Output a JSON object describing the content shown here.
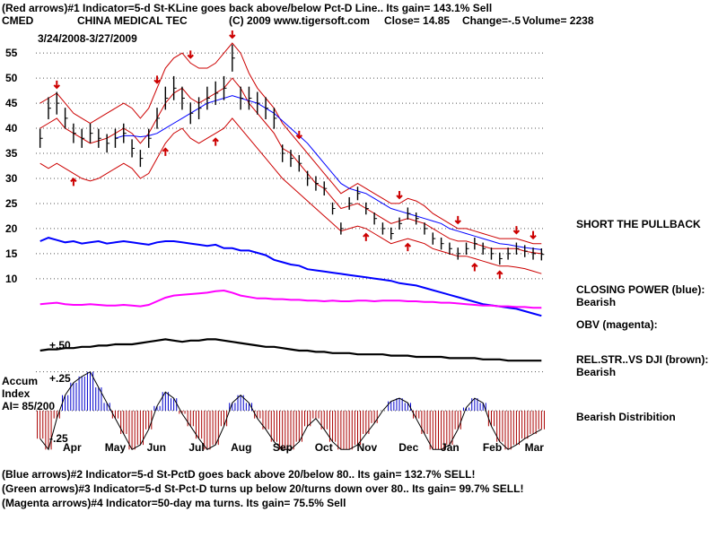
{
  "header": {
    "line1": "(Red arrows)#1 Indicator=5-d St-KLine goes back above/below Pct-D Line.. Its gain= 143.1% Sell",
    "ticker": "CMED",
    "company": "CHINA MEDICAL TEC",
    "copyright": "(C) 2009 www.tigersoft.com",
    "close": "Close=  14.85",
    "change": "Change=-.5",
    "volume": "Volume= 2238",
    "daterange": "3/24/2008-3/27/2009"
  },
  "side_labels": {
    "short_pullback": "SHORT THE PULLBACK",
    "closing_power": "CLOSING POWER (blue):",
    "closing_power_status": "Bearish",
    "obv": "OBV (magenta):",
    "relstr": "REL.STR..VS DJI (brown):",
    "relstr_status": "Bearish",
    "distribution": "Bearish Distribition"
  },
  "accum": {
    "title": "Accum",
    "index": "Index",
    "ai": "AI= 85/200",
    "plus": "+.25",
    "minus": "-.25",
    "relstr_tick": "+.50"
  },
  "footer": {
    "blue": "(Blue arrows)#2 Indicator=5-d St-PctD goes back above 20/below 80.. Its gain= 132.7% SELL!",
    "green": "(Green arrows)#3 Indicator=5-d St-Pct-D turns up below 20/turns down over 80.. Its gain= 99.7% SELL!",
    "magenta": "(Magenta arrows)#4 Indicator=50-day ma turns. Its gain= 75.5% Sell"
  },
  "colors": {
    "price": "#000000",
    "band": "#cc0000",
    "ma": "#0000ff",
    "closing_power": "#0000ff",
    "obv": "#ff00ff",
    "relstr": "#000000",
    "accum_pos": "#0000cc",
    "accum_neg": "#aa0000",
    "grid": "#555555"
  },
  "chart_data": {
    "type": "line",
    "title": "CHINA MEDICAL TEC",
    "ylim": [
      8,
      57
    ],
    "yticks": [
      10,
      15,
      20,
      25,
      30,
      35,
      40,
      45,
      50,
      55
    ],
    "months": [
      "Apr",
      "May",
      "Jun",
      "Jul",
      "Aug",
      "Sep",
      "Oct",
      "Nov",
      "Dec",
      "Jan",
      "Feb",
      "Mar"
    ],
    "series": [
      {
        "name": "Close",
        "values": [
          38,
          44,
          45,
          42,
          39,
          38,
          39,
          38,
          37,
          38,
          39,
          36,
          34,
          38,
          42,
          46,
          48,
          46,
          43,
          44,
          46,
          47,
          48,
          54,
          46,
          46,
          45,
          44,
          42,
          35,
          34,
          33,
          30,
          29,
          28,
          24,
          20,
          25,
          27,
          24,
          22,
          20,
          19,
          21,
          23,
          22,
          20,
          18,
          17,
          16,
          15,
          16,
          17,
          16,
          15,
          14,
          15,
          16,
          15.5,
          15,
          14.85
        ]
      },
      {
        "values": [
          45,
          46,
          47,
          45,
          43,
          42,
          41,
          42,
          43,
          44,
          45,
          44,
          42,
          44,
          48,
          52,
          54,
          55,
          53,
          52,
          52,
          53,
          55,
          57,
          55,
          51,
          48,
          46,
          44,
          41,
          39,
          37,
          35,
          33,
          31,
          29,
          27,
          28,
          29,
          28,
          27,
          26,
          25,
          25,
          26,
          25.5,
          24.5,
          23,
          22,
          21,
          20,
          20,
          19.5,
          19,
          18.5,
          18,
          18,
          18,
          17.5,
          17,
          17
        ]
      },
      {
        "values": [
          40,
          41,
          42,
          40,
          39,
          38,
          37,
          37.5,
          38,
          39,
          40,
          39,
          37,
          39,
          42,
          45,
          47,
          48,
          46,
          45,
          46,
          47,
          48,
          50,
          48,
          45,
          43,
          41,
          39,
          36,
          35,
          33,
          31,
          29,
          28,
          26,
          24,
          24.5,
          25,
          24,
          23,
          22,
          21,
          21.5,
          22,
          21.5,
          21,
          20,
          19,
          18,
          17.5,
          17.5,
          17,
          16.5,
          16,
          16,
          16,
          16,
          15.5,
          15.2,
          15
        ]
      },
      {
        "values": [
          33,
          32,
          33,
          32,
          31,
          30,
          29.5,
          30,
          31,
          32,
          33,
          32,
          30,
          31,
          34,
          37,
          39,
          40,
          38,
          37,
          38,
          39,
          40,
          42,
          40,
          38,
          36,
          34,
          32,
          30,
          28.5,
          27,
          25.5,
          24,
          22.5,
          21,
          19.5,
          20,
          20.5,
          20,
          19,
          18,
          17,
          17.5,
          18,
          17.5,
          17,
          16,
          15.5,
          15,
          14.5,
          14.5,
          14,
          13.5,
          13,
          12.5,
          12.5,
          12.3,
          12,
          11.5,
          11
        ]
      },
      {
        "values": [
          null,
          null,
          null,
          null,
          null,
          null,
          null,
          null,
          null,
          38,
          38.5,
          38.5,
          38.3,
          38.5,
          39,
          40,
          41,
          42,
          43,
          44,
          45,
          45.5,
          46,
          46.5,
          46,
          45.5,
          45,
          44,
          43,
          41.5,
          40,
          38.5,
          37,
          35,
          33,
          31,
          29,
          28,
          27.5,
          27,
          26,
          25,
          24,
          23.5,
          23,
          22.5,
          22,
          21.5,
          21,
          20,
          19.5,
          19,
          18.5,
          18,
          17.5,
          17,
          16.8,
          16.5,
          16.2,
          16,
          15.8
        ]
      }
    ],
    "accum_values": [
      -0.18,
      -0.25,
      -0.05,
      0.1,
      0.18,
      0.22,
      0.25,
      0.15,
      0.05,
      -0.05,
      -0.15,
      -0.25,
      -0.22,
      -0.12,
      0.03,
      0.12,
      0.08,
      -0.02,
      -0.1,
      -0.18,
      -0.25,
      -0.22,
      -0.1,
      0.05,
      0.1,
      0.05,
      -0.05,
      -0.12,
      -0.2,
      -0.25,
      -0.25,
      -0.2,
      -0.1,
      -0.05,
      -0.12,
      -0.2,
      -0.25,
      -0.25,
      -0.22,
      -0.15,
      -0.08,
      0.0,
      0.06,
      0.08,
      0.05,
      -0.05,
      -0.15,
      -0.25,
      -0.25,
      -0.22,
      -0.12,
      0.02,
      0.08,
      0.05,
      -0.1,
      -0.2,
      -0.25,
      -0.22,
      -0.18,
      -0.15,
      -0.12
    ],
    "accum_ylim": [
      -0.3,
      0.3
    ],
    "red_arrows_down": [
      2,
      14,
      18,
      23,
      31,
      43,
      50,
      57,
      59
    ],
    "red_arrows_up": [
      4,
      15,
      21,
      39,
      44,
      52,
      55
    ],
    "indicator_ylim": [
      0,
      10
    ],
    "closing_power": [
      7.0,
      7.3,
      7.1,
      6.9,
      7.0,
      6.8,
      6.9,
      7.0,
      6.8,
      6.9,
      7.0,
      6.9,
      6.8,
      6.7,
      6.9,
      7.0,
      7.0,
      6.9,
      6.8,
      6.7,
      6.6,
      6.7,
      6.4,
      6.4,
      6.2,
      6.2,
      6.0,
      5.8,
      5.4,
      5.2,
      5.0,
      4.9,
      4.6,
      4.5,
      4.4,
      4.3,
      4.2,
      4.1,
      4.0,
      3.9,
      3.8,
      3.7,
      3.6,
      3.4,
      3.3,
      3.2,
      3.0,
      2.8,
      2.6,
      2.4,
      2.2,
      2.0,
      1.8,
      1.6,
      1.5,
      1.4,
      1.3,
      1.2,
      1.0,
      0.8,
      0.6
    ],
    "obv": [
      4.1,
      4.2,
      4.3,
      4.1,
      4.0,
      4.0,
      4.1,
      4.0,
      3.9,
      3.9,
      4.0,
      3.9,
      3.8,
      4.0,
      4.5,
      5.0,
      5.3,
      5.4,
      5.5,
      5.6,
      5.7,
      5.9,
      6.0,
      5.7,
      5.3,
      5.1,
      4.9,
      4.9,
      4.8,
      4.8,
      4.7,
      4.7,
      4.6,
      4.6,
      4.5,
      4.6,
      4.5,
      4.5,
      4.6,
      4.6,
      4.5,
      4.6,
      4.6,
      4.6,
      4.5,
      4.5,
      4.4,
      4.4,
      4.3,
      4.3,
      4.2,
      4.1,
      4.0,
      3.9,
      3.9,
      3.8,
      3.8,
      3.7,
      3.7,
      3.6,
      3.6
    ],
    "relstr": [
      1.0,
      1.1,
      1.1,
      1.2,
      1.2,
      1.3,
      1.3,
      1.4,
      1.4,
      1.5,
      1.5,
      1.5,
      1.6,
      1.7,
      1.8,
      1.9,
      1.8,
      1.7,
      1.8,
      1.8,
      1.9,
      1.9,
      1.8,
      1.7,
      1.6,
      1.5,
      1.4,
      1.3,
      1.3,
      1.2,
      1.1,
      1.0,
      1.0,
      0.9,
      0.9,
      0.8,
      0.8,
      0.8,
      0.7,
      0.7,
      0.7,
      0.7,
      0.6,
      0.6,
      0.6,
      0.5,
      0.5,
      0.5,
      0.5,
      0.4,
      0.4,
      0.4,
      0.4,
      0.3,
      0.3,
      0.3,
      0.2,
      0.2,
      0.2,
      0.2,
      0.2
    ]
  }
}
